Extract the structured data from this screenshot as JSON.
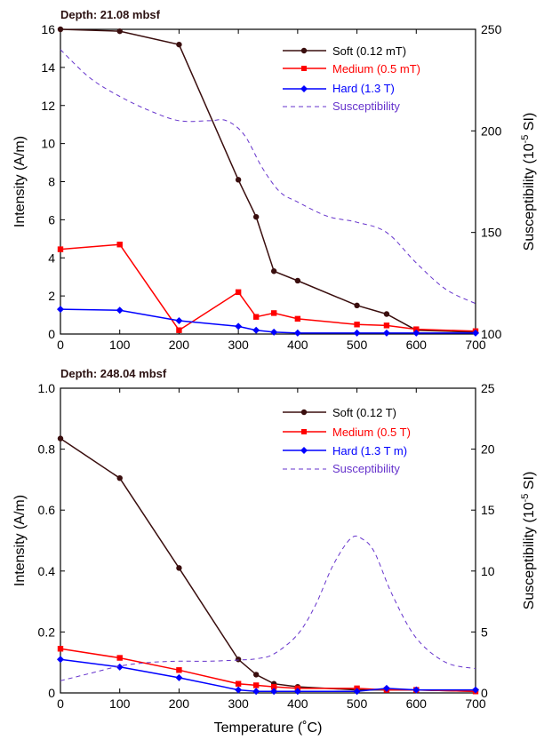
{
  "xlabel": "Temperature (˚C)",
  "chart_data": [
    {
      "type": "line",
      "title": "Depth: 21.08 mbsf",
      "xlabel": "",
      "ylabel": "Intensity (A/m)",
      "y2label_main": "Susceptibility (10",
      "y2label_exp": "-5",
      "y2label_tail": " SI)",
      "xlim": [
        0,
        700
      ],
      "ylim": [
        0,
        16
      ],
      "y2lim": [
        100,
        250
      ],
      "xticks": [
        0,
        100,
        200,
        300,
        400,
        500,
        600,
        700
      ],
      "yticks": [
        0,
        2,
        4,
        6,
        8,
        10,
        12,
        14,
        16
      ],
      "y2ticks": [
        100,
        150,
        200,
        250
      ],
      "legend_position": "top-right",
      "series": [
        {
          "name": "Soft (0.12 mT)",
          "color": "#3a0e0e",
          "marker": "circle",
          "axis": "left",
          "x": [
            0,
            100,
            200,
            300,
            330,
            360,
            400,
            500,
            550,
            600,
            700
          ],
          "y": [
            16.0,
            15.9,
            15.2,
            8.1,
            6.15,
            3.3,
            2.8,
            1.5,
            1.05,
            0.2,
            0.1
          ]
        },
        {
          "name": "Medium (0.5 mT)",
          "color": "#ff0000",
          "marker": "square",
          "axis": "left",
          "x": [
            0,
            100,
            200,
            300,
            330,
            360,
            400,
            500,
            550,
            600,
            700
          ],
          "y": [
            4.45,
            4.7,
            0.2,
            2.2,
            0.9,
            1.1,
            0.8,
            0.5,
            0.45,
            0.25,
            0.15
          ]
        },
        {
          "name": "Hard (1.3 T)",
          "color": "#0000ff",
          "marker": "diamond",
          "axis": "left",
          "x": [
            0,
            100,
            200,
            300,
            330,
            360,
            400,
            500,
            550,
            600,
            700
          ],
          "y": [
            1.3,
            1.25,
            0.7,
            0.4,
            0.2,
            0.1,
            0.05,
            0.05,
            0.05,
            0.05,
            0.05
          ]
        },
        {
          "name": "Susceptibility",
          "color": "#6633cc",
          "dashed": true,
          "axis": "right",
          "x": [
            0,
            50,
            100,
            150,
            200,
            250,
            280,
            310,
            340,
            370,
            400,
            450,
            500,
            550,
            600,
            650,
            700
          ],
          "y": [
            240,
            226,
            217,
            210,
            205,
            205,
            205,
            198,
            182,
            170,
            165,
            158,
            155,
            150,
            135,
            122,
            115
          ]
        }
      ]
    },
    {
      "type": "line",
      "title": "Depth: 248.04 mbsf",
      "xlabel": "Temperature (˚C)",
      "ylabel": "Intensity (A/m)",
      "y2label_main": "Susceptibility (10",
      "y2label_exp": "-5",
      "y2label_tail": " SI)",
      "xlim": [
        0,
        700
      ],
      "ylim": [
        0,
        1.0
      ],
      "y2lim": [
        0,
        25
      ],
      "xticks": [
        0,
        100,
        200,
        300,
        400,
        500,
        600,
        700
      ],
      "yticks": [
        0,
        0.2,
        0.4,
        0.6,
        0.8,
        1.0
      ],
      "ytick_labels": [
        "0",
        "0.2",
        "0.4",
        "0.6",
        "0.8",
        "1.0"
      ],
      "y2ticks": [
        0,
        5,
        10,
        15,
        20,
        25
      ],
      "legend_position": "top-right",
      "series": [
        {
          "name": "Soft (0.12 T)",
          "color": "#3a0e0e",
          "marker": "circle",
          "axis": "left",
          "x": [
            0,
            100,
            200,
            300,
            330,
            360,
            400,
            500,
            550,
            600,
            700
          ],
          "y": [
            0.835,
            0.705,
            0.41,
            0.11,
            0.06,
            0.03,
            0.02,
            0.01,
            0.01,
            0.01,
            0.005
          ]
        },
        {
          "name": "Medium (0.5 T)",
          "color": "#ff0000",
          "marker": "square",
          "axis": "left",
          "x": [
            0,
            100,
            200,
            300,
            330,
            360,
            400,
            500,
            550,
            600,
            700
          ],
          "y": [
            0.145,
            0.115,
            0.075,
            0.03,
            0.025,
            0.02,
            0.015,
            0.015,
            0.01,
            0.01,
            0.005
          ]
        },
        {
          "name": "Hard (1.3 T m)",
          "color": "#0000ff",
          "marker": "diamond",
          "axis": "left",
          "x": [
            0,
            100,
            200,
            300,
            330,
            360,
            400,
            500,
            550,
            600,
            700
          ],
          "y": [
            0.11,
            0.085,
            0.05,
            0.01,
            0.005,
            0.005,
            0.005,
            0.005,
            0.015,
            0.01,
            0.01
          ]
        },
        {
          "name": "Susceptibility",
          "color": "#6633cc",
          "dashed": true,
          "axis": "right",
          "x": [
            0,
            50,
            100,
            150,
            200,
            250,
            300,
            330,
            360,
            400,
            430,
            460,
            490,
            510,
            530,
            560,
            600,
            650,
            700
          ],
          "y": [
            1.0,
            1.6,
            2.2,
            2.5,
            2.6,
            2.6,
            2.7,
            2.8,
            3.2,
            4.8,
            7.2,
            10.5,
            12.7,
            12.6,
            11.5,
            8.0,
            4.5,
            2.5,
            2.0
          ]
        }
      ]
    }
  ]
}
